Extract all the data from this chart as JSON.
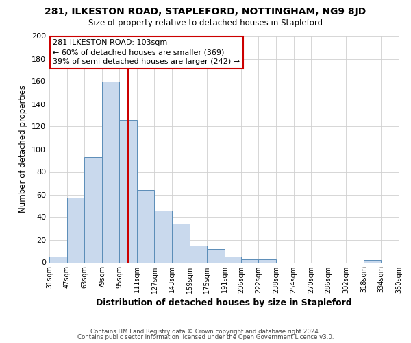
{
  "title": "281, ILKESTON ROAD, STAPLEFORD, NOTTINGHAM, NG9 8JD",
  "subtitle": "Size of property relative to detached houses in Stapleford",
  "xlabel": "Distribution of detached houses by size in Stapleford",
  "ylabel": "Number of detached properties",
  "bar_values": [
    5,
    57,
    93,
    160,
    126,
    64,
    46,
    34,
    15,
    12,
    5,
    3,
    3,
    0,
    0,
    0,
    0,
    0,
    2
  ],
  "bar_left_edges": [
    31,
    47,
    63,
    79,
    95,
    111,
    127,
    143,
    159,
    175,
    191,
    206,
    222,
    238,
    254,
    270,
    286,
    302,
    318
  ],
  "bar_right_edges": [
    47,
    63,
    79,
    95,
    111,
    127,
    143,
    159,
    175,
    191,
    206,
    222,
    238,
    254,
    270,
    286,
    302,
    318,
    334
  ],
  "tick_positions": [
    31,
    47,
    63,
    79,
    95,
    111,
    127,
    143,
    159,
    175,
    191,
    206,
    222,
    238,
    254,
    270,
    286,
    302,
    318,
    334,
    350
  ],
  "tick_labels": [
    "31sqm",
    "47sqm",
    "63sqm",
    "79sqm",
    "95sqm",
    "111sqm",
    "127sqm",
    "143sqm",
    "159sqm",
    "175sqm",
    "191sqm",
    "206sqm",
    "222sqm",
    "238sqm",
    "254sqm",
    "270sqm",
    "286sqm",
    "302sqm",
    "318sqm",
    "334sqm",
    "350sqm"
  ],
  "ylim": [
    0,
    200
  ],
  "yticks": [
    0,
    20,
    40,
    60,
    80,
    100,
    120,
    140,
    160,
    180,
    200
  ],
  "bar_color": "#c9d9ed",
  "bar_edge_color": "#5b8db8",
  "property_line_x": 103,
  "property_line_color": "#cc0000",
  "annotation_title": "281 ILKESTON ROAD: 103sqm",
  "annotation_line1": "← 60% of detached houses are smaller (369)",
  "annotation_line2": "39% of semi-detached houses are larger (242) →",
  "annotation_box_edge": "#cc0000",
  "footer_line1": "Contains HM Land Registry data © Crown copyright and database right 2024.",
  "footer_line2": "Contains public sector information licensed under the Open Government Licence v3.0.",
  "background_color": "#ffffff",
  "grid_color": "#d0d0d0"
}
